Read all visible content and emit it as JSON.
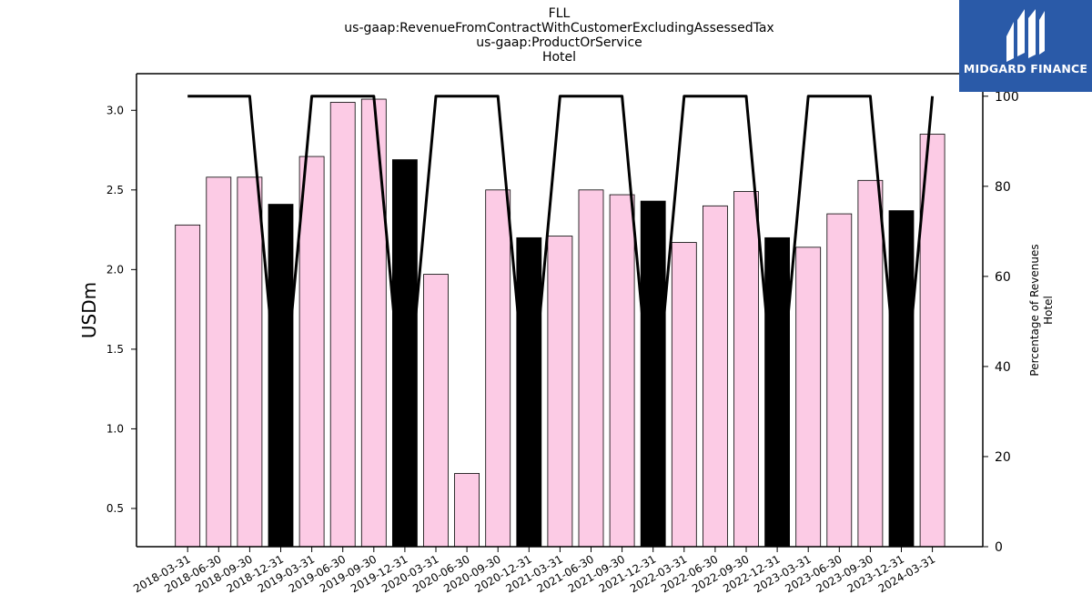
{
  "title": {
    "lines": [
      "FLL",
      "us-gaap:RevenueFromContractWithCustomerExcludingAssessedTax",
      "us-gaap:ProductOrService",
      "Hotel"
    ]
  },
  "logo": {
    "text": "MIDGARD FINANCE",
    "color": "#2a5aa8"
  },
  "chart_data": {
    "type": "bar",
    "categories": [
      "2018-03-31",
      "2018-06-30",
      "2018-09-30",
      "2018-12-31",
      "2019-03-31",
      "2019-06-30",
      "2019-09-30",
      "2019-12-31",
      "2020-03-31",
      "2020-06-30",
      "2020-09-30",
      "2020-12-31",
      "2021-03-31",
      "2021-06-30",
      "2021-09-30",
      "2021-12-31",
      "2022-03-31",
      "2022-06-30",
      "2022-09-30",
      "2022-12-31",
      "2023-03-31",
      "2023-06-30",
      "2023-09-30",
      "2023-12-31",
      "2024-03-31"
    ],
    "series": [
      {
        "values": [
          2.28,
          2.58,
          2.58,
          2.41,
          2.71,
          3.05,
          3.07,
          2.69,
          1.97,
          0.72,
          2.5,
          2.2,
          2.21,
          2.5,
          2.47,
          2.43,
          2.17,
          2.4,
          2.49,
          2.2,
          2.14,
          2.35,
          2.56,
          2.37,
          2.85
        ],
        "bar_colors": [
          "#fccbe5",
          "#fccbe5",
          "#fccbe5",
          "#000000",
          "#fccbe5",
          "#fccbe5",
          "#fccbe5",
          "#000000",
          "#fccbe5",
          "#fccbe5",
          "#fccbe5",
          "#000000",
          "#fccbe5",
          "#fccbe5",
          "#fccbe5",
          "#000000",
          "#fccbe5",
          "#fccbe5",
          "#fccbe5",
          "#000000",
          "#fccbe5",
          "#fccbe5",
          "#fccbe5",
          "#000000",
          "#fccbe5"
        ]
      },
      {
        "axis": "right",
        "type": "line",
        "values": [
          100,
          100,
          100,
          25,
          100,
          100,
          100,
          25,
          100,
          100,
          100,
          25,
          100,
          100,
          100,
          25,
          100,
          100,
          100,
          25,
          100,
          100,
          100,
          25,
          100
        ]
      }
    ],
    "ylabel": "USDm",
    "ylabel_right": [
      "Percentage of Revenues",
      "Hotel"
    ],
    "ylim": [
      0.26,
      3.23
    ],
    "ylim_right": [
      0,
      105
    ],
    "yticks": [
      "0.5",
      "1.0",
      "1.5",
      "2.0",
      "2.5",
      "3.0"
    ],
    "yticks_right": [
      "0",
      "20",
      "40",
      "60",
      "80",
      "100"
    ],
    "colors": {
      "bar": "#fccbe5",
      "q4_bar": "#000000",
      "line": "#000000"
    },
    "grid": false
  }
}
